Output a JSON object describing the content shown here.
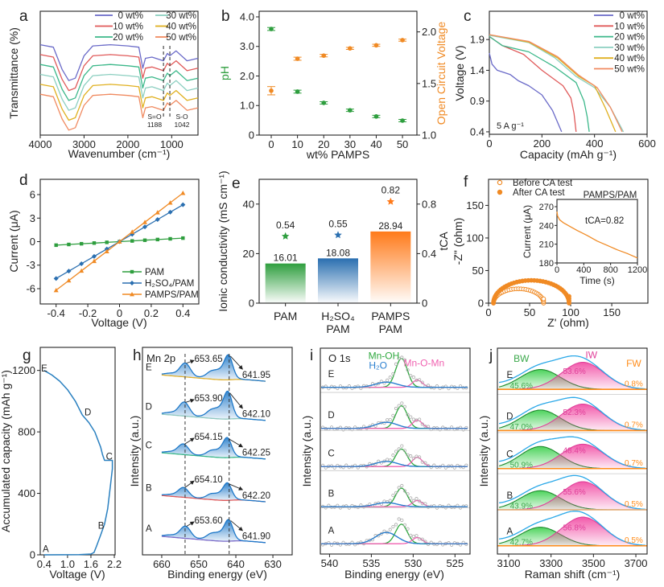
{
  "chart_data": [
    {
      "panel": "a",
      "type": "line",
      "xlabel": "Wavenumber (cm⁻¹)",
      "ylabel": "Transmittance (%)",
      "xlim": [
        4000,
        400
      ],
      "xticks": [
        "4000",
        "3000",
        "2000",
        "1000"
      ],
      "x": [
        4000,
        3700,
        3500,
        3350,
        3200,
        3000,
        2800,
        2400,
        2000,
        1750,
        1660,
        1600,
        1450,
        1188,
        1100,
        1042,
        900,
        650,
        400
      ],
      "series": [
        {
          "name": "0 wt%",
          "color": "#6a6ac8",
          "values": [
            0.73,
            0.71,
            0.53,
            0.44,
            0.46,
            0.64,
            0.72,
            0.73,
            0.72,
            0.71,
            0.54,
            0.62,
            0.63,
            0.6,
            0.66,
            0.64,
            0.68,
            0.6,
            0.62
          ]
        },
        {
          "name": "10 wt%",
          "color": "#e05a5a",
          "values": [
            0.65,
            0.63,
            0.45,
            0.36,
            0.38,
            0.56,
            0.64,
            0.65,
            0.64,
            0.63,
            0.46,
            0.54,
            0.55,
            0.52,
            0.58,
            0.56,
            0.6,
            0.52,
            0.54
          ]
        },
        {
          "name": "20 wt%",
          "color": "#3cb88a",
          "values": [
            0.57,
            0.55,
            0.37,
            0.28,
            0.3,
            0.48,
            0.56,
            0.57,
            0.56,
            0.55,
            0.38,
            0.46,
            0.47,
            0.44,
            0.5,
            0.48,
            0.52,
            0.44,
            0.46
          ]
        },
        {
          "name": "30 wt%",
          "color": "#8ccfc0",
          "values": [
            0.49,
            0.47,
            0.29,
            0.2,
            0.22,
            0.4,
            0.48,
            0.49,
            0.48,
            0.47,
            0.3,
            0.38,
            0.39,
            0.36,
            0.42,
            0.4,
            0.44,
            0.36,
            0.38
          ]
        },
        {
          "name": "40 wt%",
          "color": "#e0b020",
          "values": [
            0.41,
            0.39,
            0.21,
            0.12,
            0.14,
            0.32,
            0.4,
            0.41,
            0.4,
            0.39,
            0.22,
            0.3,
            0.31,
            0.28,
            0.34,
            0.32,
            0.36,
            0.28,
            0.3
          ]
        },
        {
          "name": "50 wt%",
          "color": "#f08a60",
          "values": [
            0.33,
            0.31,
            0.13,
            0.04,
            0.06,
            0.24,
            0.32,
            0.33,
            0.32,
            0.31,
            0.14,
            0.22,
            0.23,
            0.2,
            0.26,
            0.24,
            0.28,
            0.2,
            0.22
          ]
        }
      ],
      "annotations": [
        {
          "label": "S=O",
          "value": "1188",
          "x": 1188
        },
        {
          "label": "S-O",
          "value": "1042",
          "x": 1042
        }
      ]
    },
    {
      "panel": "b",
      "type": "scatter",
      "xlabel": "wt% PAMPS",
      "ylabel": "pH",
      "y2label": "Open Circuit Voltage",
      "xticks": [
        "0",
        "10",
        "20",
        "30",
        "40",
        "50"
      ],
      "yticks": [
        "0",
        "1.0",
        "2.0",
        "3.0",
        "4.0"
      ],
      "y2ticks": [
        "1.0",
        "1.5",
        "2.0"
      ],
      "x": [
        0,
        10,
        20,
        30,
        40,
        50
      ],
      "series": [
        {
          "name": "pH",
          "axis": "left",
          "color": "#2e9e3e",
          "values": [
            3.59,
            1.47,
            1.09,
            0.84,
            0.63,
            0.49
          ],
          "errors": [
            0.05,
            0.05,
            0.04,
            0.04,
            0.04,
            0.04
          ]
        },
        {
          "name": "Open Circuit Voltage",
          "axis": "right",
          "color": "#f08a24",
          "values": [
            1.43,
            1.74,
            1.77,
            1.84,
            1.87,
            1.92
          ],
          "errors": [
            0.04,
            0.015,
            0.012,
            0.01,
            0.01,
            0.01
          ]
        }
      ]
    },
    {
      "panel": "c",
      "type": "line",
      "xlabel": "Capacity (mAh g⁻¹)",
      "ylabel": "Voltage (V)",
      "xlim": [
        0,
        600
      ],
      "ylim": [
        0.36,
        2.36
      ],
      "xticks": [
        "0",
        "200",
        "400",
        "600"
      ],
      "yticks": [
        "0.4",
        "0.9",
        "1.4",
        "1.9"
      ],
      "annotation": "5 A g⁻¹",
      "series": [
        {
          "name": "0 wt%",
          "color": "#6a6ac8",
          "points": [
            [
              0,
              1.68
            ],
            [
              10,
              1.5
            ],
            [
              30,
              1.4
            ],
            [
              80,
              1.33
            ],
            [
              110,
              1.23
            ],
            [
              150,
              1.15
            ],
            [
              200,
              1.0
            ],
            [
              240,
              0.75
            ],
            [
              275,
              0.4
            ]
          ]
        },
        {
          "name": "10 wt%",
          "color": "#e05a5a",
          "points": [
            [
              0,
              1.95
            ],
            [
              50,
              1.8
            ],
            [
              130,
              1.66
            ],
            [
              200,
              1.4
            ],
            [
              280,
              1.15
            ],
            [
              310,
              0.95
            ],
            [
              322,
              0.7
            ],
            [
              330,
              0.4
            ]
          ]
        },
        {
          "name": "20 wt%",
          "color": "#3cb88a",
          "points": [
            [
              0,
              1.95
            ],
            [
              50,
              1.8
            ],
            [
              150,
              1.7
            ],
            [
              250,
              1.45
            ],
            [
              330,
              1.2
            ],
            [
              360,
              0.9
            ],
            [
              372,
              0.65
            ],
            [
              380,
              0.4
            ]
          ]
        },
        {
          "name": "30 wt%",
          "color": "#8ccfc0",
          "points": [
            [
              0,
              1.97
            ],
            [
              150,
              1.85
            ],
            [
              250,
              1.6
            ],
            [
              330,
              1.3
            ],
            [
              400,
              1.12
            ],
            [
              460,
              0.8
            ],
            [
              510,
              0.4
            ]
          ]
        },
        {
          "name": "40 wt%",
          "color": "#e0b020",
          "points": [
            [
              0,
              1.98
            ],
            [
              150,
              1.86
            ],
            [
              260,
              1.6
            ],
            [
              340,
              1.3
            ],
            [
              400,
              1.15
            ],
            [
              440,
              0.8
            ],
            [
              480,
              0.4
            ]
          ]
        },
        {
          "name": "50 wt%",
          "color": "#f08a60",
          "points": [
            [
              0,
              1.98
            ],
            [
              150,
              1.87
            ],
            [
              260,
              1.62
            ],
            [
              340,
              1.32
            ],
            [
              410,
              1.12
            ],
            [
              460,
              0.8
            ],
            [
              505,
              0.4
            ]
          ]
        }
      ]
    },
    {
      "panel": "d",
      "type": "line",
      "xlabel": "Voltage (V)",
      "ylabel": "Current (μA)",
      "xlim": [
        -0.5,
        0.5
      ],
      "ylim": [
        -7.95,
        7.95
      ],
      "xticks": [
        "-0.4",
        "-0.2",
        "0",
        "0.2",
        "0.4"
      ],
      "yticks": [
        "-6",
        "-3",
        "0",
        "3",
        "6"
      ],
      "x": [
        -0.4,
        -0.32,
        -0.24,
        -0.16,
        -0.08,
        0,
        0.08,
        0.16,
        0.24,
        0.32,
        0.4
      ],
      "series": [
        {
          "name": "PAM",
          "color": "#2e9e3e",
          "marker": "square",
          "values": [
            -0.45,
            -0.36,
            -0.27,
            -0.18,
            -0.09,
            0,
            0.09,
            0.18,
            0.27,
            0.36,
            0.45
          ]
        },
        {
          "name": "H₂SO₄/PAM",
          "color": "#2a6fb0",
          "marker": "diamond",
          "values": [
            -4.7,
            -3.76,
            -2.82,
            -1.88,
            -0.94,
            0,
            0.94,
            1.88,
            2.82,
            3.76,
            4.7
          ]
        },
        {
          "name": "PAMPS/PAM",
          "color": "#f08a24",
          "marker": "triangle",
          "values": [
            -6.2,
            -4.96,
            -3.72,
            -2.48,
            -1.24,
            0,
            1.24,
            2.48,
            3.72,
            4.96,
            6.2
          ]
        }
      ]
    },
    {
      "panel": "e",
      "type": "bar",
      "ylabel": "Ionic conductivity (mS cm⁻¹)",
      "y2label": "tCA",
      "ylim": [
        0,
        50
      ],
      "y2lim": [
        0,
        1.0
      ],
      "yticks": [
        "0",
        "20",
        "40"
      ],
      "y2ticks": [
        "0",
        "0.4",
        "0.8"
      ],
      "categories": [
        [
          "PAM"
        ],
        [
          "H₂SO₄",
          "PAM"
        ],
        [
          "PAMPS",
          "PAM"
        ]
      ],
      "values": [
        16.01,
        18.08,
        28.94
      ],
      "value_labels": [
        "16.01",
        "18.08",
        "28.94"
      ],
      "tca": [
        0.54,
        0.55,
        0.82
      ],
      "tca_labels": [
        "0.54",
        "0.55",
        "0.82"
      ],
      "colors": [
        "#2e9e3e",
        "#2a6fb0",
        "#ff7a1a"
      ]
    },
    {
      "panel": "f",
      "type": "scatter",
      "xlabel": "Z' (ohm)",
      "ylabel": "-Z\" (ohm)",
      "xlim": [
        0,
        194
      ],
      "ylim": [
        0,
        190
      ],
      "xticks": [
        "0",
        "50",
        "100",
        "150"
      ],
      "yticks": [
        "0",
        "50",
        "100",
        "150"
      ],
      "title": "PAMPS/PAM",
      "color": "#f08a24",
      "series": [
        {
          "name": "Before CA test",
          "marker": "open-circle",
          "semicircle": {
            "z_start": 6,
            "z_end": 67,
            "peak": 22
          }
        },
        {
          "name": "After CA test",
          "marker": "filled-circle",
          "semicircle": {
            "z_start": 6,
            "z_end": 98,
            "peak": 35
          }
        }
      ],
      "inset": {
        "type": "line",
        "xlabel": "Time (s)",
        "ylabel": "Current (μA)",
        "xlim": [
          0,
          1200
        ],
        "ylim": [
          180,
          281.6
        ],
        "xticks": [
          "0",
          "400",
          "800",
          "1200"
        ],
        "yticks": [
          "180",
          "210",
          "240",
          "270"
        ],
        "annotation": "tCA=0.82",
        "points": [
          [
            0,
            262
          ],
          [
            10,
            255
          ],
          [
            40,
            249
          ],
          [
            100,
            244
          ],
          [
            200,
            238
          ],
          [
            300,
            232
          ],
          [
            450,
            224
          ],
          [
            600,
            215
          ],
          [
            750,
            208
          ],
          [
            900,
            201
          ],
          [
            1050,
            195
          ],
          [
            1200,
            188
          ]
        ]
      }
    },
    {
      "panel": "g",
      "type": "line",
      "xlabel": "Voltage (V)",
      "ylabel": "Accumulated capacity (mAh g⁻¹)",
      "xlim": [
        0.3,
        2.22
      ],
      "ylim": [
        0,
        1350
      ],
      "xticks": [
        "0.4",
        "1.0",
        "1.6",
        "2.2"
      ],
      "yticks": [
        "0",
        "400",
        "800",
        "1200"
      ],
      "color": "#2a80c0",
      "points": [
        [
          0.4,
          0
        ],
        [
          1.3,
          1
        ],
        [
          1.6,
          5
        ],
        [
          1.68,
          15
        ],
        [
          1.75,
          60
        ],
        [
          1.85,
          130
        ],
        [
          1.95,
          200
        ],
        [
          2.03,
          300
        ],
        [
          2.1,
          450
        ],
        [
          2.15,
          560
        ],
        [
          2.15,
          615
        ],
        [
          1.95,
          615
        ],
        [
          1.9,
          650
        ],
        [
          1.85,
          700
        ],
        [
          1.7,
          800
        ],
        [
          1.55,
          860
        ],
        [
          1.38,
          910
        ],
        [
          1.2,
          1000
        ],
        [
          1.0,
          1075
        ],
        [
          0.8,
          1130
        ],
        [
          0.6,
          1170
        ],
        [
          0.4,
          1200
        ]
      ],
      "point_labels": [
        {
          "label": "A",
          "x": 0.4,
          "y": 40
        },
        {
          "label": "B",
          "x": 1.82,
          "y": 190
        },
        {
          "label": "C",
          "x": 2.03,
          "y": 640
        },
        {
          "label": "D",
          "x": 1.48,
          "y": 930
        },
        {
          "label": "E",
          "x": 0.36,
          "y": 1215
        }
      ]
    },
    {
      "panel": "h",
      "type": "line",
      "title": "Mn 2p",
      "xlabel": "Binding energy (eV)",
      "ylabel": "Intensity (a.u.)",
      "xlim": [
        665.2,
        624.8
      ],
      "xticks": [
        "660",
        "650",
        "640",
        "630"
      ],
      "curve_color": "#1e78c8",
      "rows": [
        {
          "label": "E",
          "peak1": "653.65",
          "peak2": "641.95",
          "baseline_color": "#e0b030"
        },
        {
          "label": "D",
          "peak1": "653.90",
          "peak2": "642.10",
          "baseline_color": "#8fc8c0"
        },
        {
          "label": "C",
          "peak1": "654.15",
          "peak2": "642.25",
          "baseline_color": "#3cb88a"
        },
        {
          "label": "B",
          "peak1": "654.10",
          "peak2": "642.20",
          "baseline_color": "#e05a5a"
        },
        {
          "label": "A",
          "peak1": "653.60",
          "peak2": "641.90",
          "baseline_color": "#7a6ac8"
        }
      ]
    },
    {
      "panel": "i",
      "type": "line",
      "title": "O 1s",
      "xlabel": "Binding energy (eV)",
      "ylabel": "Intensity (a.u.)",
      "xlim": [
        541.1,
        523.2
      ],
      "xticks": [
        "540",
        "535",
        "530",
        "525"
      ],
      "components": [
        {
          "name": "H₂O",
          "center": 533.2,
          "color": "#2a7fd0"
        },
        {
          "name": "Mn-OH",
          "center": 531.4,
          "color": "#2ea83e"
        },
        {
          "name": "Mn-O-Mn",
          "center": 529.5,
          "color": "#f060b0"
        }
      ],
      "rows": [
        "E",
        "D",
        "C",
        "B",
        "A"
      ]
    },
    {
      "panel": "j",
      "type": "area",
      "xlabel": "Raman shift (cm⁻¹)",
      "ylabel": "Intensity (a.u.)",
      "xlim": [
        3047,
        3753
      ],
      "xticks": [
        "3100",
        "3300",
        "3500",
        "3700"
      ],
      "components": [
        {
          "name": "BW",
          "color": "#2ecc40"
        },
        {
          "name": "IW",
          "color": "#f03c9c"
        },
        {
          "name": "FW",
          "color": "#ff8c1a"
        }
      ],
      "envelope_color": "#2aa8e8",
      "rows": [
        {
          "label": "E",
          "BW": "45.6%",
          "IW": "53.6%",
          "FW": "0.8%"
        },
        {
          "label": "D",
          "BW": "47.0%",
          "IW": "52.3%",
          "FW": "0.7%"
        },
        {
          "label": "C",
          "BW": "50.9%",
          "IW": "48.4%",
          "FW": "0.7%"
        },
        {
          "label": "B",
          "BW": "43.9%",
          "IW": "55.6%",
          "FW": "0.5%"
        },
        {
          "label": "A",
          "BW": "42.7%",
          "IW": "56.8%",
          "FW": "0.5%"
        }
      ]
    }
  ]
}
